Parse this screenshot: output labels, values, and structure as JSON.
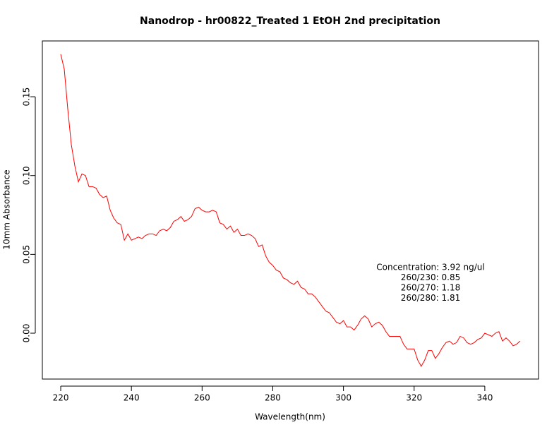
{
  "chart_data": {
    "type": "line",
    "title": "Nanodrop - hr00822_Treated 1  EtOH 2nd precipitation",
    "x_label": "Wavelength(nm)",
    "y_label": "10mm Absorbance",
    "color": "#ff0000",
    "x": [
      220,
      221,
      222,
      223,
      224,
      225,
      226,
      227,
      228,
      229,
      230,
      231,
      232,
      233,
      234,
      235,
      236,
      237,
      238,
      239,
      240,
      241,
      242,
      243,
      244,
      245,
      246,
      247,
      248,
      249,
      250,
      251,
      252,
      253,
      254,
      255,
      256,
      257,
      258,
      259,
      260,
      261,
      262,
      263,
      264,
      265,
      266,
      267,
      268,
      269,
      270,
      271,
      272,
      273,
      274,
      275,
      276,
      277,
      278,
      279,
      280,
      281,
      282,
      283,
      284,
      285,
      286,
      287,
      288,
      289,
      290,
      291,
      292,
      293,
      294,
      295,
      296,
      297,
      298,
      299,
      300,
      301,
      302,
      303,
      304,
      305,
      306,
      307,
      308,
      309,
      310,
      311,
      312,
      313,
      314,
      315,
      316,
      317,
      318,
      319,
      320,
      321,
      322,
      323,
      324,
      325,
      326,
      327,
      328,
      329,
      330,
      331,
      332,
      333,
      334,
      335,
      336,
      337,
      338,
      339,
      340,
      341,
      342,
      343,
      344,
      345,
      346,
      347,
      348,
      349,
      350
    ],
    "values": [
      0.177,
      0.1675,
      0.142,
      0.1196,
      0.106,
      0.096,
      0.101,
      0.1,
      0.093,
      0.093,
      0.092,
      0.088,
      0.086,
      0.087,
      0.078,
      0.073,
      0.07,
      0.069,
      0.059,
      0.063,
      0.059,
      0.06,
      0.061,
      0.06,
      0.062,
      0.063,
      0.063,
      0.062,
      0.065,
      0.066,
      0.065,
      0.067,
      0.071,
      0.072,
      0.074,
      0.071,
      0.072,
      0.074,
      0.079,
      0.08,
      0.078,
      0.077,
      0.077,
      0.078,
      0.077,
      0.07,
      0.069,
      0.066,
      0.068,
      0.064,
      0.066,
      0.062,
      0.062,
      0.063,
      0.062,
      0.06,
      0.055,
      0.056,
      0.049,
      0.045,
      0.043,
      0.04,
      0.039,
      0.035,
      0.034,
      0.032,
      0.031,
      0.033,
      0.029,
      0.028,
      0.025,
      0.025,
      0.023,
      0.02,
      0.017,
      0.014,
      0.013,
      0.01,
      0.007,
      0.006,
      0.008,
      0.004,
      0.004,
      0.002,
      0.005,
      0.009,
      0.011,
      0.009,
      0.004,
      0.006,
      0.007,
      0.005,
      0.001,
      -0.002,
      -0.002,
      -0.002,
      -0.002,
      -0.007,
      -0.01,
      -0.01,
      -0.01,
      -0.017,
      -0.021,
      -0.017,
      -0.011,
      -0.011,
      -0.016,
      -0.013,
      -0.009,
      -0.006,
      -0.005,
      -0.007,
      -0.006,
      -0.002,
      -0.003,
      -0.006,
      -0.007,
      -0.006,
      -0.004,
      -0.003,
      0.0,
      -0.001,
      -0.002,
      0.0,
      0.001,
      -0.005,
      -0.003,
      -0.005,
      -0.008,
      -0.007,
      -0.005
    ],
    "xlim": [
      214.8,
      355.2
    ],
    "ylim": [
      -0.0291,
      0.1854
    ],
    "xticks": [
      220,
      240,
      260,
      280,
      300,
      320,
      340
    ],
    "yticks": [
      {
        "value": 0,
        "label": "0.00"
      },
      {
        "value": 0.05,
        "label": "0.05"
      },
      {
        "value": 0.1,
        "label": "0.10"
      },
      {
        "value": 0.15,
        "label": "0.15"
      }
    ],
    "annotations": [
      "Concentration: 3.92 ng/ul",
      "260/230: 0.85",
      "260/270: 1.18",
      "260/280: 1.81"
    ]
  }
}
